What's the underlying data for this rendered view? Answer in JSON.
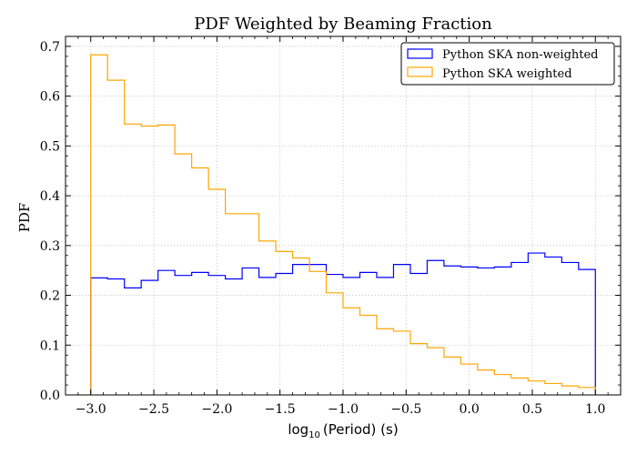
{
  "chart_data": {
    "type": "histogram-step",
    "title": "PDF Weighted by Beaming Fraction",
    "xlabel": {
      "prefix": "log",
      "subscript": "10",
      "suffix": "(Period) (s)"
    },
    "ylabel": "PDF",
    "xlim": [
      -3.2,
      1.2
    ],
    "ylim": [
      0.0,
      0.72
    ],
    "x_ticks": [
      -3.0,
      -2.5,
      -2.0,
      -1.5,
      -1.0,
      -0.5,
      0.0,
      0.5,
      1.0
    ],
    "x_tick_labels": [
      "−3.0",
      "−2.5",
      "−2.0",
      "−1.5",
      "−1.0",
      "−0.5",
      "0.0",
      "0.5",
      "1.0"
    ],
    "y_ticks": [
      0.0,
      0.1,
      0.2,
      0.3,
      0.4,
      0.5,
      0.6,
      0.7
    ],
    "y_tick_labels": [
      "0.0",
      "0.1",
      "0.2",
      "0.3",
      "0.4",
      "0.5",
      "0.6",
      "0.7"
    ],
    "grid": true,
    "legend_position": "top-right",
    "bin_edges": [
      -3.0,
      -2.8667,
      -2.7333,
      -2.6,
      -2.4667,
      -2.3333,
      -2.2,
      -2.0667,
      -1.9333,
      -1.8,
      -1.6667,
      -1.5333,
      -1.4,
      -1.2667,
      -1.1333,
      -1.0,
      -0.8667,
      -0.7333,
      -0.6,
      -0.4667,
      -0.3333,
      -0.2,
      -0.0667,
      0.0667,
      0.2,
      0.3333,
      0.4667,
      0.6,
      0.7333,
      0.8667,
      1.0
    ],
    "series": [
      {
        "name": "Python SKA non-weighted",
        "color": "#0000ff",
        "values": [
          0.235,
          0.233,
          0.215,
          0.23,
          0.25,
          0.24,
          0.246,
          0.24,
          0.233,
          0.255,
          0.236,
          0.244,
          0.262,
          0.262,
          0.242,
          0.236,
          0.246,
          0.236,
          0.262,
          0.244,
          0.27,
          0.259,
          0.257,
          0.255,
          0.257,
          0.266,
          0.285,
          0.277,
          0.266,
          0.252
        ]
      },
      {
        "name": "Python SKA weighted",
        "color": "#ffa500",
        "values": [
          0.683,
          0.632,
          0.544,
          0.54,
          0.542,
          0.484,
          0.456,
          0.413,
          0.364,
          0.364,
          0.309,
          0.288,
          0.275,
          0.248,
          0.205,
          0.175,
          0.16,
          0.133,
          0.128,
          0.103,
          0.095,
          0.076,
          0.062,
          0.05,
          0.041,
          0.034,
          0.028,
          0.023,
          0.018,
          0.015
        ]
      }
    ]
  }
}
